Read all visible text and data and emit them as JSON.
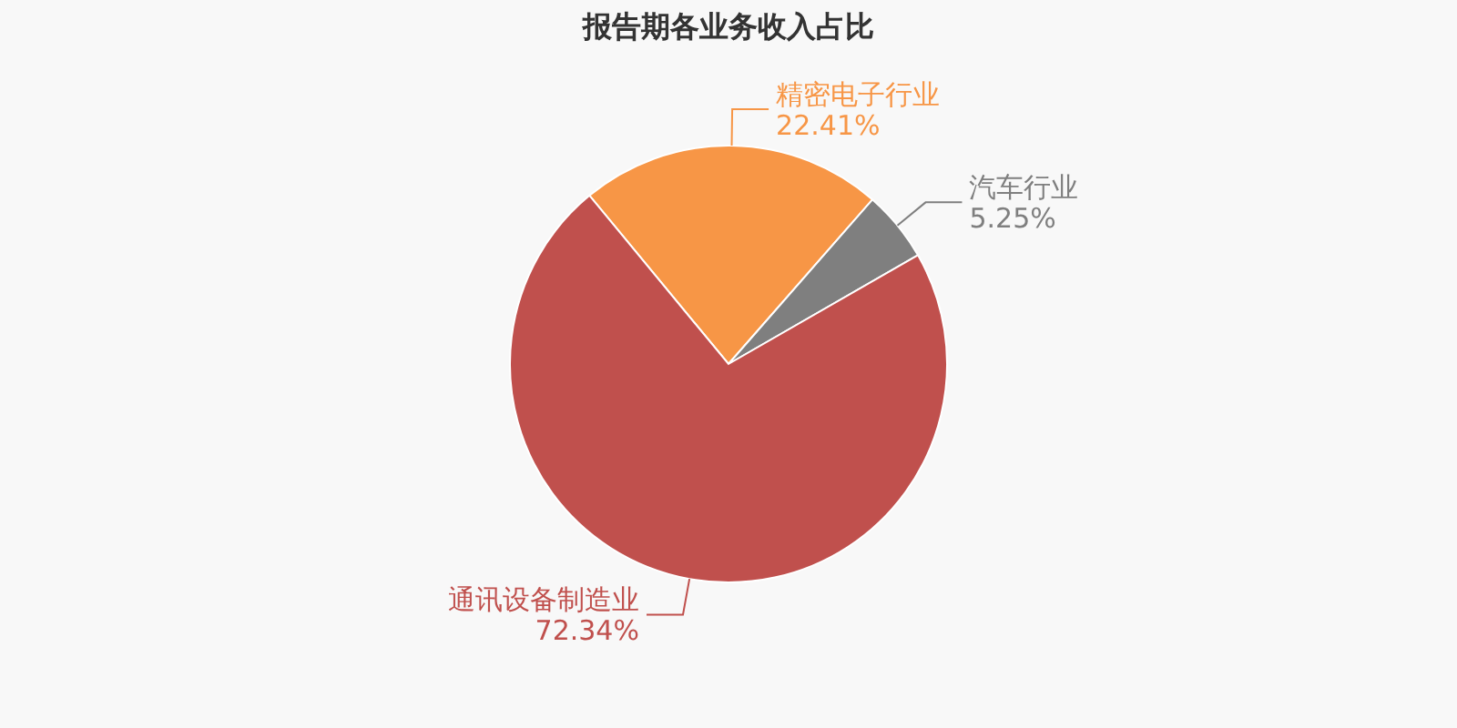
{
  "chart_data": {
    "type": "pie",
    "title": "报告期各业务收入占比",
    "categories": [
      "精密电子行业",
      "汽车行业",
      "通讯设备制造业"
    ],
    "values": [
      22.41,
      5.25,
      72.34
    ],
    "colors": [
      "#f79646",
      "#7f7f7f",
      "#c0504d"
    ],
    "value_labels": [
      "22.41%",
      "5.25%",
      "72.34%"
    ]
  }
}
